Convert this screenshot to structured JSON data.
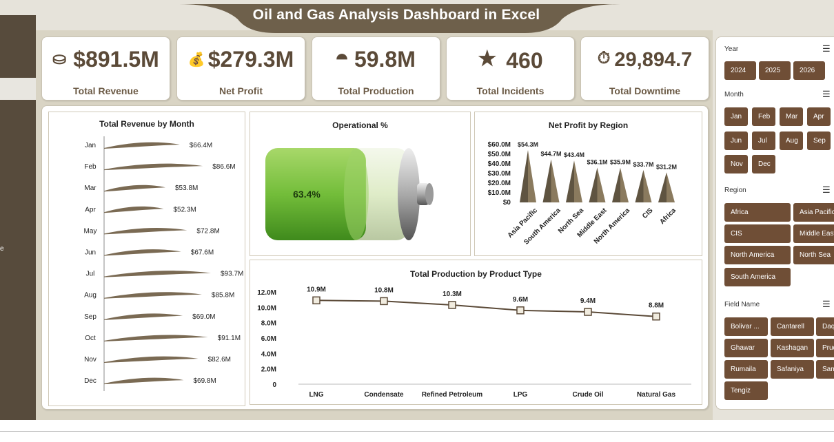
{
  "dashboard": {
    "title": "Oil and Gas Analysis Dashboard in Excel",
    "sidebar_fragment": "e"
  },
  "colors": {
    "brown": "#5b4a38",
    "slicer": "#6f4e36",
    "bar": "#7a6a53",
    "green": "#7cc242"
  },
  "kpis": [
    {
      "icon": "coins-icon",
      "glyph": "⛀",
      "value": "$891.5M",
      "label": "Total Revenue"
    },
    {
      "icon": "money-bag-icon",
      "glyph": "💰",
      "value": "$279.3M",
      "label": "Net Profit"
    },
    {
      "icon": "gold-bars-icon",
      "glyph": "⯊",
      "value": "59.8M",
      "label": "Total Production"
    },
    {
      "icon": "star-icon",
      "glyph": "★",
      "value": "460",
      "label": "Total Incidents"
    },
    {
      "icon": "stopwatch-icon",
      "glyph": "⏱",
      "value": "29,894.7",
      "label": "Total Downtime"
    }
  ],
  "chart_data": [
    {
      "type": "bar",
      "title": "Total Revenue  by Month",
      "orientation": "horizontal",
      "categories": [
        "Jan",
        "Feb",
        "Mar",
        "Apr",
        "May",
        "Jun",
        "Jul",
        "Aug",
        "Sep",
        "Oct",
        "Nov",
        "Dec"
      ],
      "values": [
        66.4,
        86.6,
        53.8,
        52.3,
        72.8,
        67.6,
        93.7,
        85.8,
        69.0,
        91.1,
        82.6,
        69.8
      ],
      "labels": [
        "$66.4M",
        "$86.6M",
        "$53.8M",
        "$52.3M",
        "$72.8M",
        "$67.6M",
        "$93.7M",
        "$85.8M",
        "$69.0M",
        "$91.1M",
        "$82.6M",
        "$69.8M"
      ],
      "unit": "$M",
      "grid": false
    },
    {
      "type": "gauge",
      "title": "Operational %",
      "value": 63.4,
      "label": "63.4%"
    },
    {
      "type": "bar",
      "title": "Net Profit by Region",
      "categories": [
        "Asia Pacific",
        "South America",
        "North Sea",
        "Middle East",
        "North America",
        "CIS",
        "Africa"
      ],
      "values": [
        54.3,
        44.7,
        43.4,
        36.1,
        35.9,
        33.7,
        31.2
      ],
      "labels": [
        "$54.3M",
        "$44.7M",
        "$43.4M",
        "$36.1M",
        "$35.9M",
        "$33.7M",
        "$31.2M"
      ],
      "yticks": [
        "$0",
        "$10.0M",
        "$20.0M",
        "$30.0M",
        "$40.0M",
        "$50.0M",
        "$60.0M"
      ],
      "ylim": [
        0,
        60
      ],
      "grid": false
    },
    {
      "type": "line",
      "title": "Total Production by Product Type",
      "categories": [
        "LNG",
        "Condensate",
        "Refined Petroleum",
        "LPG",
        "Crude Oil",
        "Natural Gas"
      ],
      "values": [
        10.9,
        10.8,
        10.3,
        9.6,
        9.4,
        8.8
      ],
      "labels": [
        "10.9M",
        "10.8M",
        "10.3M",
        "9.6M",
        "9.4M",
        "8.8M"
      ],
      "yticks": [
        "0",
        "2.0M",
        "4.0M",
        "6.0M",
        "8.0M",
        "10.0M",
        "12.0M"
      ],
      "ylim": [
        0,
        12
      ],
      "grid": false
    }
  ],
  "slicers": {
    "year": {
      "title": "Year",
      "items": [
        "2024",
        "2025",
        "2026"
      ]
    },
    "month": {
      "title": "Month",
      "items": [
        "Jan",
        "Feb",
        "Mar",
        "Apr",
        "Jun",
        "Jul",
        "Aug",
        "Sep",
        "Nov",
        "Dec"
      ]
    },
    "region": {
      "title": "Region",
      "items": [
        "Africa",
        "Asia Pacific",
        "CIS",
        "Middle East",
        "North America",
        "North Sea",
        "South America"
      ]
    },
    "field": {
      "title": "Field Name",
      "items": [
        "Bolivar ...",
        "Cantarell",
        "Daq",
        "Ghawar",
        "Kashagan",
        "Prud",
        "Rumaila",
        "Safaniya",
        "Sam",
        "Tengiz"
      ]
    }
  }
}
